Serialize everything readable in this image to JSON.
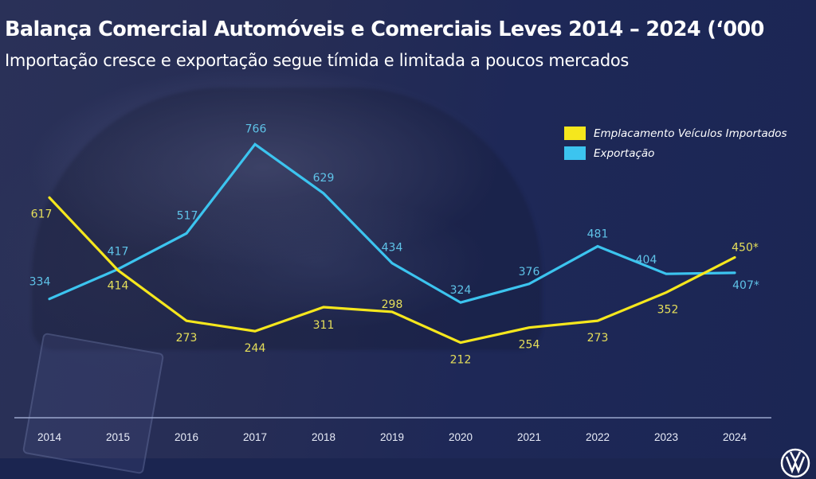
{
  "header": {
    "title": "Balança Comercial Automóveis e Comerciais Leves 2014 – 2024 (‘000",
    "subtitle": "Importação cresce e exportação segue tímida e limitada a poucos mercados"
  },
  "colors": {
    "import": "#f5e71d",
    "export": "#3cc4ef",
    "import_label": "#e6df5a",
    "export_label": "#5fc3e8",
    "axis": "#9aa6cc"
  },
  "chart_data": {
    "type": "line",
    "title": "Balança Comercial Automóveis e Comerciais Leves 2014 – 2024 (‘000",
    "subtitle": "Importação cresce e exportação segue tímida e limitada a poucos mercados",
    "xlabel": "",
    "ylabel": "",
    "ylim": [
      0,
      800
    ],
    "grid": false,
    "legend_position": "top-right",
    "categories": [
      "2014",
      "2015",
      "2016",
      "2017",
      "2018",
      "2019",
      "2020",
      "2021",
      "2022",
      "2023",
      "2024"
    ],
    "series": [
      {
        "name": "Emplacamento Veículos Importados",
        "key": "import",
        "values": [
          617,
          414,
          273,
          244,
          311,
          298,
          212,
          254,
          273,
          352,
          450
        ],
        "labels": [
          "617",
          "414",
          "273",
          "244",
          "311",
          "298",
          "212",
          "254",
          "273",
          "352",
          "450*"
        ]
      },
      {
        "name": "Exportação",
        "key": "export",
        "values": [
          334,
          417,
          517,
          766,
          629,
          434,
          324,
          376,
          481,
          404,
          407
        ],
        "labels": [
          "334",
          "417",
          "517",
          "766",
          "629",
          "434",
          "324",
          "376",
          "481",
          "404",
          "407*"
        ]
      }
    ]
  }
}
